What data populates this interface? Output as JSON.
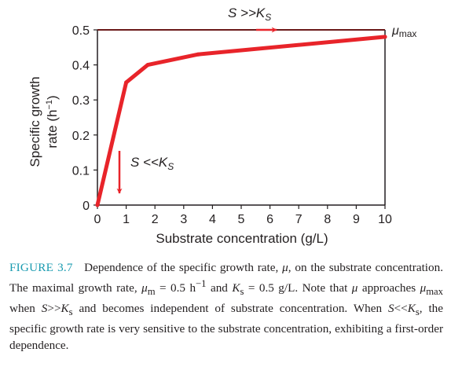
{
  "chart_data": {
    "type": "line",
    "xlabel": "Substrate concentration (g/L)",
    "ylabel_line1": "Specific growth",
    "ylabel_line2": "rate (h",
    "ylabel_sup": "−1",
    "ylabel_close": ")",
    "xlim": [
      0,
      10
    ],
    "ylim": [
      0,
      0.5
    ],
    "xticks": [
      0,
      1,
      2,
      3,
      4,
      5,
      6,
      7,
      8,
      9,
      10
    ],
    "yticks": [
      0,
      0.1,
      0.2,
      0.3,
      0.4,
      0.5
    ],
    "ytick_labels": [
      "0",
      "0.1",
      "0.2",
      "0.3",
      "0.4",
      "0.5"
    ],
    "grid": false,
    "series": [
      {
        "x": [
          0,
          1,
          1.75,
          3.5,
          10
        ],
        "y": [
          0,
          0.35,
          0.4,
          0.43,
          0.48
        ],
        "color": "#e8242a"
      }
    ],
    "asymptote": {
      "y": 0.5,
      "color": "#6b1a1a"
    },
    "annotations": {
      "top_arrow": "S >>K",
      "top_arrow_sub": "S",
      "mu_symbol": "μ",
      "mu_sub": "max",
      "low_arrow": "S <<K",
      "low_arrow_sub": "S"
    }
  },
  "caption": {
    "figure_label": "FIGURE 3.7",
    "text": "Dependence of the specific growth rate, μ, on the substrate concentration. The maximal growth rate, μm = 0.5 h−1 and Ks = 0.5 g/L. Note that μ approaches μmax when S>>Ks and becomes independent of substrate concentration. When S<<Ks, the specific growth rate is very sensitive to the substrate concentration, exhibiting a first-order dependence.",
    "p1": "Dependence of the specific growth rate, ",
    "mu": "μ",
    "p2": ", on the substrate concentration. The maximal growth rate, ",
    "mu_m": "μ",
    "mu_m_sub": "m",
    "p3": " = 0.5 h",
    "p3_sup": "−1",
    "p4": " and ",
    "K": "K",
    "K_sub": "s",
    "p5": " = 0.5 g/L. Note that ",
    "mu2": "μ",
    "p6": " approaches ",
    "mu_max": "μ",
    "mu_max_sub": "max",
    "p7": " when ",
    "S1": "S",
    "p8": ">>",
    "K2": "K",
    "K2_sub": "s",
    "p9": " and becomes independent of substrate concentration. When ",
    "S2": "S",
    "p10": "<<",
    "K3": "K",
    "K3_sub": "s",
    "p11": ", the specific growth rate is very sensitive to the substrate concentration, exhibiting a first-order dependence."
  }
}
